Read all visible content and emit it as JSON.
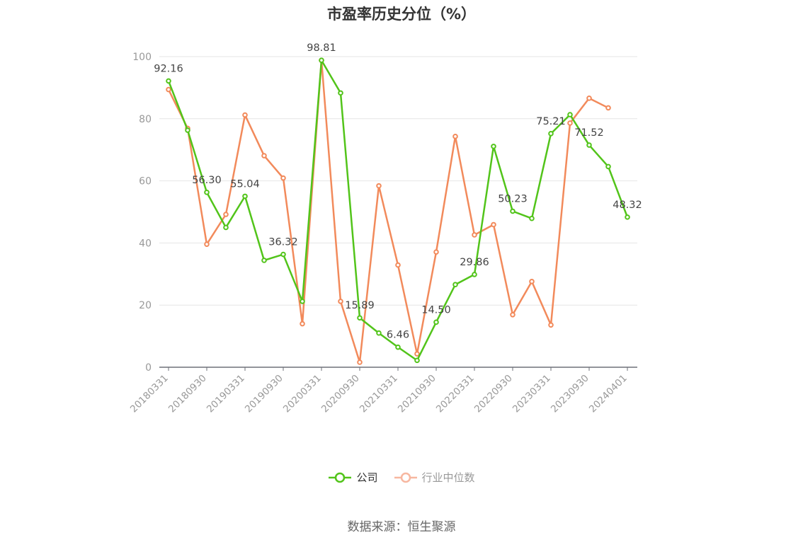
{
  "colors": {
    "company": "#52c41a",
    "industry": "#f28a5b",
    "industry_legend": "#f7b7a0",
    "grid": "#e6e6e6",
    "axis": "#6e7079",
    "text": "#333333",
    "tick": "#999999"
  },
  "chart_data": {
    "type": "line",
    "title": "市盈率历史分位（%）",
    "xlabel": "",
    "ylabel": "",
    "ylim": [
      0,
      100
    ],
    "yticks": [
      0,
      20,
      40,
      60,
      80,
      100
    ],
    "grid": true,
    "legend_position": "bottom",
    "x": [
      "20180331",
      "20180630",
      "20180930",
      "20181231",
      "20190331",
      "20190630",
      "20190930",
      "20191231",
      "20200331",
      "20200630",
      "20200930",
      "20201231",
      "20210331",
      "20210630",
      "20210930",
      "20211231",
      "20220331",
      "20220630",
      "20220930",
      "20221231",
      "20230331",
      "20230630",
      "20230930",
      "20231231",
      "20240401"
    ],
    "x_tick_labels": [
      "20180331",
      "20180930",
      "20190331",
      "20190930",
      "20200331",
      "20200930",
      "20210331",
      "20210930",
      "20220331",
      "20220930",
      "20230331",
      "20230930",
      "20240401"
    ],
    "series": [
      {
        "name": "公司",
        "values": [
          92.16,
          76.3,
          56.3,
          45.0,
          55.04,
          34.4,
          36.32,
          21.2,
          98.81,
          88.3,
          15.89,
          11.0,
          6.46,
          2.2,
          14.5,
          26.6,
          29.86,
          71.1,
          50.23,
          47.9,
          75.21,
          81.3,
          71.52,
          64.6,
          48.32
        ],
        "labels": {
          "0": "92.16",
          "2": "56.30",
          "4": "55.04",
          "6": "36.32",
          "8": "98.81",
          "10": "15.89",
          "12": "6.46",
          "14": "14.50",
          "16": "29.86",
          "18": "50.23",
          "20": "75.21",
          "22": "71.52",
          "24": "48.32"
        }
      },
      {
        "name": "行业中位数",
        "values": [
          89.4,
          76.9,
          39.6,
          49.2,
          81.2,
          68.1,
          60.9,
          14.0,
          98.8,
          21.2,
          1.6,
          58.4,
          32.9,
          4.3,
          37.1,
          74.3,
          42.6,
          45.9,
          16.9,
          27.6,
          13.6,
          78.6,
          86.6,
          83.5,
          null
        ]
      }
    ]
  },
  "legend": [
    {
      "label": "公司"
    },
    {
      "label": "行业中位数"
    }
  ],
  "source": "数据来源：恒生聚源"
}
